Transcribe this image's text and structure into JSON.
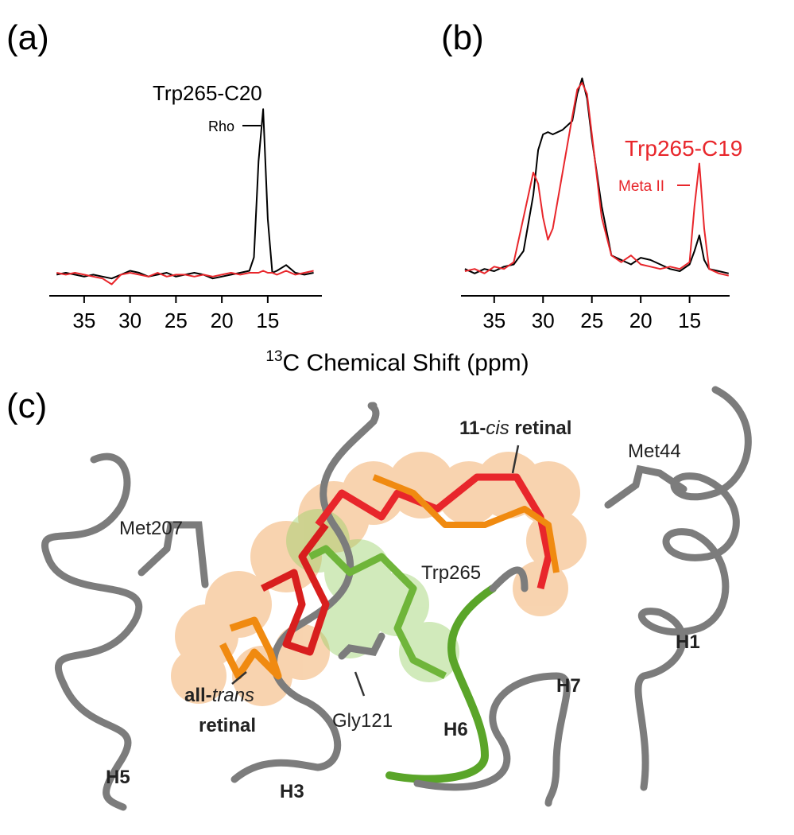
{
  "chart_data": [
    {
      "type": "line",
      "panel_label": "(a)",
      "x": [
        38,
        37,
        36,
        35,
        34,
        33,
        32,
        31,
        30,
        29,
        28,
        27,
        26,
        25,
        24,
        23,
        22,
        21,
        20,
        19,
        18,
        17,
        16.5,
        16,
        15.5,
        15,
        14.5,
        14,
        13,
        12,
        11,
        10
      ],
      "series": [
        {
          "color": "#000000",
          "values": [
            11,
            12,
            11,
            10,
            11,
            10,
            9,
            11,
            13,
            12,
            10,
            11,
            12,
            10,
            11,
            12,
            11,
            9,
            10,
            11,
            12,
            13,
            20,
            70,
            97,
            40,
            12,
            13,
            16,
            12,
            11,
            12
          ]
        },
        {
          "color": "#e8262b",
          "values": [
            12,
            11,
            12,
            11,
            10,
            9,
            6,
            11,
            12,
            11,
            10,
            12,
            10,
            11,
            11,
            10,
            11,
            10,
            11,
            12,
            11,
            12,
            12,
            12,
            13,
            12,
            12,
            11,
            13,
            11,
            12,
            13
          ]
        }
      ],
      "xlim": [
        38.8,
        9.1
      ],
      "ylim": [
        0,
        100
      ],
      "xticks": [
        35,
        30,
        25,
        20,
        15
      ],
      "annotations": [
        {
          "text": "Trp265-C20",
          "color": "#000000"
        },
        {
          "text": "Rho",
          "color": "#000000"
        }
      ]
    },
    {
      "type": "line",
      "panel_label": "(b)",
      "x": [
        38,
        37,
        36,
        35,
        34,
        33,
        32,
        31,
        30.5,
        30,
        29.5,
        29,
        28,
        27,
        26.5,
        26,
        25.5,
        25,
        24,
        23,
        22,
        21,
        20,
        19,
        18,
        17,
        16,
        15,
        14.5,
        14,
        13.5,
        13,
        12,
        11
      ],
      "series": [
        {
          "color": "#000000",
          "values": [
            12,
            10,
            12,
            11,
            13,
            14,
            20,
            45,
            65,
            72,
            73,
            72,
            74,
            78,
            90,
            97,
            88,
            70,
            40,
            18,
            16,
            14,
            17,
            16,
            14,
            12,
            11,
            14,
            20,
            27,
            16,
            12,
            11,
            10
          ]
        },
        {
          "color": "#e8262b",
          "values": [
            11,
            12,
            10,
            13,
            12,
            15,
            35,
            55,
            50,
            35,
            25,
            30,
            55,
            80,
            92,
            95,
            90,
            72,
            35,
            18,
            15,
            18,
            14,
            13,
            12,
            13,
            12,
            15,
            40,
            59,
            30,
            12,
            10,
            9
          ]
        }
      ],
      "xlim": [
        38.4,
        10.9
      ],
      "ylim": [
        0,
        100
      ],
      "xticks": [
        35,
        30,
        25,
        20,
        15
      ],
      "annotations": [
        {
          "text": "Trp265-C19",
          "color": "#e8262b"
        },
        {
          "text": "Meta II",
          "color": "#e8262b"
        }
      ]
    }
  ],
  "x_axis_label": {
    "superscript": "13",
    "text": "C Chemical Shift (ppm)"
  },
  "panel_c": {
    "panel_label": "(c)",
    "retinal_11cis": [
      "11-",
      "cis",
      " retinal"
    ],
    "retinal_alltrans": [
      "all-",
      "trans",
      "retinal"
    ],
    "residues": [
      "Met44",
      "Met207",
      "Trp265",
      "Gly121"
    ],
    "helices": [
      "H1",
      "H7",
      "H6",
      "H5",
      "H3"
    ]
  }
}
